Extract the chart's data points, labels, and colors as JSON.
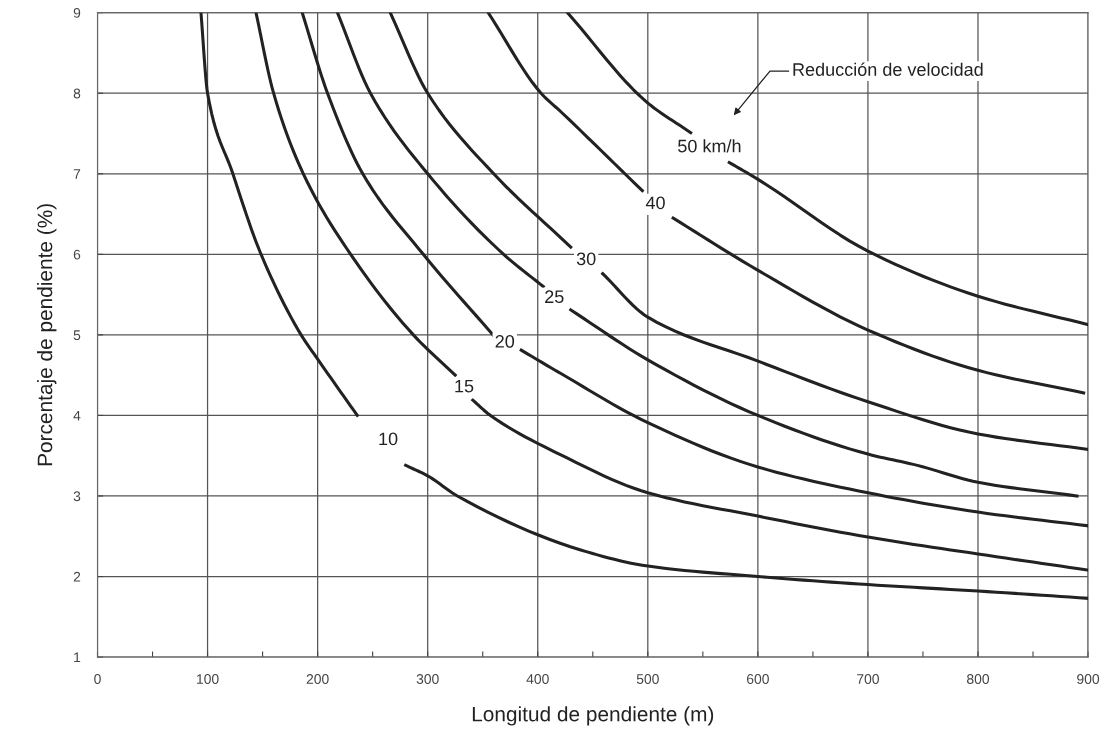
{
  "chart_data": {
    "type": "line",
    "xlabel": "Longitud de pendiente (m)",
    "ylabel": "Porcentaje de pendiente (%)",
    "xlim": [
      0,
      900
    ],
    "ylim": [
      1,
      9
    ],
    "xticks": [
      0,
      {
        "value": 50,
        "label": null
      },
      100,
      {
        "value": 150,
        "label": null
      },
      200,
      {
        "value": 250,
        "label": null
      },
      300,
      {
        "value": 350,
        "label": null
      },
      400,
      {
        "value": 450,
        "label": null
      },
      500,
      {
        "value": 550,
        "label": null
      },
      600,
      {
        "value": 650,
        "label": null
      },
      700,
      {
        "value": 750,
        "label": null
      },
      800,
      {
        "value": 850,
        "label": null
      },
      900
    ],
    "yticks": [
      1,
      2,
      3,
      4,
      5,
      6,
      7,
      8,
      9
    ],
    "grid": true,
    "legend": false,
    "marker": "none",
    "line_style": "solid",
    "annotations": [
      "Reducción de velocidad"
    ],
    "series": [
      {
        "name": "10",
        "color": "#222222",
        "x": [
          94,
          100,
          123,
          148,
          185,
          200,
          236,
          264,
          280,
          300,
          327,
          439,
          500,
          600,
          700,
          800,
          900
        ],
        "values": [
          9,
          8,
          7,
          6.02,
          5,
          4.7,
          4,
          null,
          3.38,
          3.25,
          3,
          2.33,
          2.13,
          2.0,
          1.9,
          1.82,
          1.73
        ]
      },
      {
        "name": "15",
        "color": "#222222",
        "x": [
          144,
          160,
          187,
          230,
          287,
          325,
          333,
          341,
          357,
          421,
          500,
          600,
          700,
          800,
          900
        ],
        "values": [
          9,
          8,
          7,
          6,
          5,
          4.5,
          null,
          4.19,
          4,
          3.51,
          3.04,
          2.75,
          2.49,
          2.28,
          2.08
        ]
      },
      {
        "name": "20",
        "color": "#222222",
        "x": [
          186,
          209,
          241,
          296,
          360,
          370,
          385,
          421,
          500,
          600,
          700,
          800,
          900
        ],
        "values": [
          9,
          8,
          7,
          6,
          4.99,
          null,
          4.81,
          4.52,
          3.91,
          3.36,
          3.04,
          2.8,
          2.63
        ]
      },
      {
        "name": "25",
        "color": "#222222",
        "x": [
          218,
          248,
          300,
          369,
          405,
          415,
          430,
          500,
          600,
          700,
          745,
          800,
          890
        ],
        "values": [
          9,
          8,
          7,
          6,
          5.6,
          null,
          5.31,
          4.69,
          4.0,
          3.52,
          3.38,
          3.17,
          3.0
        ]
      },
      {
        "name": "30",
        "color": "#222222",
        "x": [
          266,
          300,
          360,
          430,
          444,
          459,
          500,
          599,
          700,
          800,
          899
        ],
        "values": [
          9,
          8,
          7,
          6.09,
          null,
          5.76,
          5.22,
          4.68,
          4.17,
          3.77,
          3.58
        ]
      },
      {
        "name": "40",
        "color": "#222222",
        "x": [
          355,
          403,
          421,
          495,
          507,
          523,
          599,
          700,
          800,
          896
        ],
        "values": [
          9,
          8,
          7.77,
          6.79,
          null,
          6.45,
          5.81,
          5.06,
          4.56,
          4.28
        ]
      },
      {
        "name": "50 km/h",
        "color": "#222222",
        "x": [
          427,
          499,
          539,
          556,
          574,
          599,
          700,
          800,
          899
        ],
        "values": [
          9,
          7.89,
          7.51,
          null,
          7.14,
          6.94,
          6.04,
          5.48,
          5.13
        ]
      }
    ]
  }
}
